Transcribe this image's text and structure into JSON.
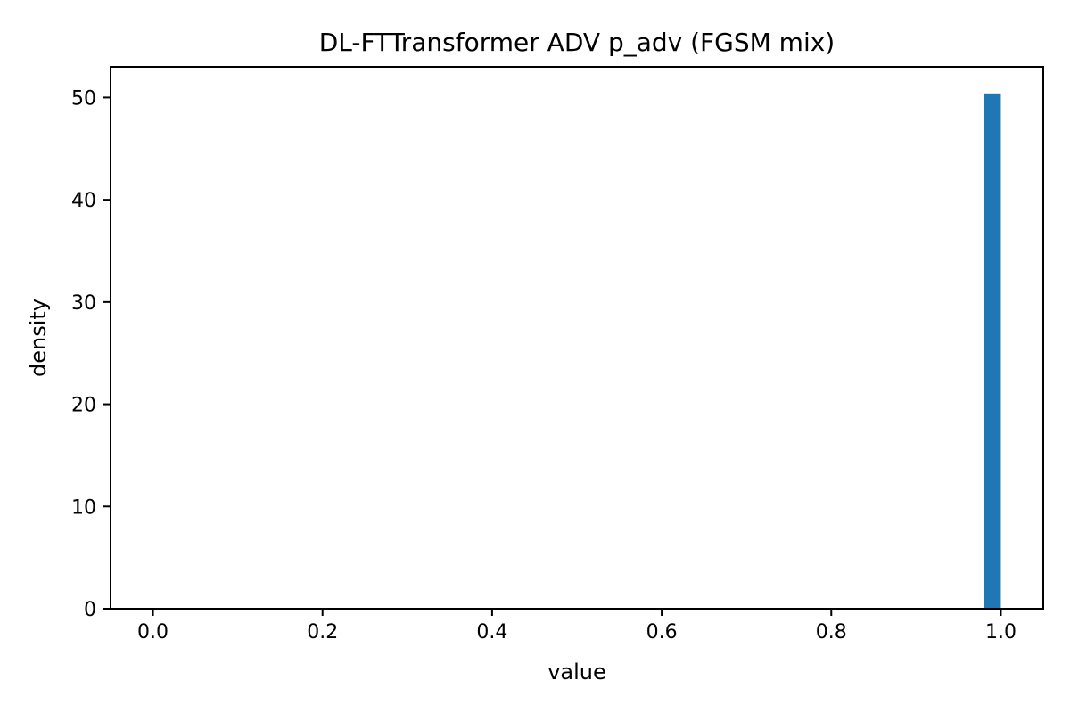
{
  "chart_data": {
    "type": "bar",
    "title": "DL-FTTransformer ADV p_adv (FGSM mix)",
    "xlabel": "value",
    "ylabel": "density",
    "xlim": [
      -0.05,
      1.05
    ],
    "ylim": [
      0,
      53
    ],
    "xticks": [
      0.0,
      0.2,
      0.4,
      0.6,
      0.8,
      1.0
    ],
    "xtick_labels": [
      "0.0",
      "0.2",
      "0.4",
      "0.6",
      "0.8",
      "1.0"
    ],
    "yticks": [
      0,
      10,
      20,
      30,
      40,
      50
    ],
    "ytick_labels": [
      "0",
      "10",
      "20",
      "30",
      "40",
      "50"
    ],
    "bins": [
      {
        "x0": 0.98,
        "x1": 1.0,
        "value": 50.4
      }
    ],
    "color": "#1f77b4",
    "grid": false,
    "legend": false
  }
}
